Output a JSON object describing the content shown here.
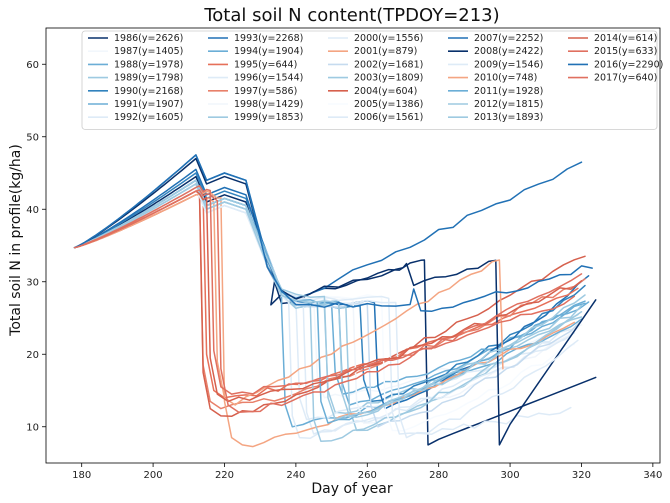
{
  "chart_data": {
    "type": "line",
    "title": "Total soil N content(TPDOY=213)",
    "xlabel": "Day of year",
    "ylabel": "Total soil N in profile(kg/ha)",
    "xlim": [
      170,
      342
    ],
    "ylim": [
      5,
      65
    ],
    "xticks": [
      180,
      200,
      220,
      240,
      260,
      280,
      300,
      320,
      340
    ],
    "yticks": [
      10,
      20,
      30,
      40,
      50,
      60
    ],
    "grid": false,
    "legend_position": "top-center",
    "legend_columns": 5,
    "series": [
      {
        "name": "1986(y=2626)",
        "color": "#08306b",
        "drop_day": 233,
        "peak": 44.5,
        "low": 27.0,
        "end_day": 324,
        "end_value": 16.8,
        "late_drop": 276,
        "late_low": 7.5
      },
      {
        "name": "1987(y=1405)",
        "color": "#f2f7fc",
        "drop_day": 245,
        "peak": 43.0,
        "low": 14.0,
        "end_day": 320,
        "end_value": 24.0
      },
      {
        "name": "1988(y=1978)",
        "color": "#6baed6",
        "drop_day": 252,
        "peak": 44.0,
        "low": 13.0,
        "end_day": 322,
        "end_value": 28.0
      },
      {
        "name": "1989(y=1798)",
        "color": "#9ecae1",
        "drop_day": 248,
        "peak": 43.5,
        "low": 12.0,
        "end_day": 322,
        "end_value": 26.0
      },
      {
        "name": "1990(y=2168)",
        "color": "#3182bd",
        "drop_day": 258,
        "peak": 45.0,
        "low": 13.5,
        "end_day": 323,
        "end_value": 30.0
      },
      {
        "name": "1991(y=1907)",
        "color": "#6baed6",
        "drop_day": 250,
        "peak": 44.0,
        "low": 14.5,
        "end_day": 322,
        "end_value": 27.0
      },
      {
        "name": "1992(y=1605)",
        "color": "#deebf7",
        "drop_day": 242,
        "peak": 43.0,
        "low": 9.0,
        "end_day": 318,
        "end_value": 24.0
      },
      {
        "name": "1993(y=2268)",
        "color": "#2171b5",
        "drop_day": 262,
        "peak": 45.5,
        "low": 12.5,
        "end_day": 323,
        "end_value": 31.0
      },
      {
        "name": "1994(y=1904)",
        "color": "#6baed6",
        "drop_day": 236,
        "peak": 44.0,
        "low": 10.0,
        "end_day": 322,
        "end_value": 25.0
      },
      {
        "name": "1995(y=644)",
        "color": "#e6705a",
        "drop_day": 215,
        "peak": 43.0,
        "low": 14.0,
        "end_day": 320,
        "end_value": 29.0
      },
      {
        "name": "1996(y=1544)",
        "color": "#deebf7",
        "drop_day": 240,
        "peak": 43.5,
        "low": 11.0,
        "end_day": 318,
        "end_value": 23.0
      },
      {
        "name": "1997(y=586)",
        "color": "#e8806a",
        "drop_day": 214,
        "peak": 42.5,
        "low": 12.5,
        "end_day": 322,
        "end_value": 30.5
      },
      {
        "name": "1998(y=1429)",
        "color": "#f0f5fb",
        "drop_day": 256,
        "peak": 43.0,
        "low": 10.5,
        "end_day": 320,
        "end_value": 23.5
      },
      {
        "name": "1999(y=1853)",
        "color": "#9ecae1",
        "drop_day": 254,
        "peak": 43.5,
        "low": 9.5,
        "end_day": 322,
        "end_value": 26.5
      },
      {
        "name": "2000(y=1556)",
        "color": "#deebf7",
        "drop_day": 238,
        "peak": 43.0,
        "low": 8.5,
        "end_day": 318,
        "end_value": 22.5
      },
      {
        "name": "2001(y=879)",
        "color": "#f4a582",
        "drop_day": 220,
        "peak": 42.5,
        "low": 7.5,
        "end_day": 320,
        "end_value": 25.0
      },
      {
        "name": "2002(y=1681)",
        "color": "#c6dbef",
        "drop_day": 260,
        "peak": 43.5,
        "low": 10.0,
        "end_day": 320,
        "end_value": 24.5
      },
      {
        "name": "2003(y=1809)",
        "color": "#9ecae1",
        "drop_day": 244,
        "peak": 44.0,
        "low": 8.0,
        "end_day": 321,
        "end_value": 26.0
      },
      {
        "name": "2004(y=604)",
        "color": "#d6604d",
        "drop_day": 213,
        "peak": 42.0,
        "low": 11.5,
        "end_day": 323,
        "end_value": 34.5
      },
      {
        "name": "2005(y=1386)",
        "color": "#f7fbff",
        "drop_day": 264,
        "peak": 43.0,
        "low": 9.5,
        "end_day": 319,
        "end_value": 22.0
      },
      {
        "name": "2006(y=1561)",
        "color": "#deebf7",
        "drop_day": 266,
        "peak": 43.0,
        "low": 9.0,
        "end_day": 318,
        "end_value": 12.5
      },
      {
        "name": "2007(y=2252)",
        "color": "#2171b5",
        "drop_day": 296,
        "peak": 47.5,
        "low": 24.5,
        "end_day": 323,
        "end_value": 47.0,
        "rising": true
      },
      {
        "name": "2008(y=2422)",
        "color": "#08306b",
        "drop_day": 270,
        "peak": 47.0,
        "low": 29.5,
        "end_day": 324,
        "end_value": 27.5,
        "late_drop": 296,
        "late_low": 7.5
      },
      {
        "name": "2009(y=1546)",
        "color": "#deebf7",
        "drop_day": 268,
        "peak": 43.0,
        "low": 8.5,
        "end_day": 320,
        "end_value": 22.0
      },
      {
        "name": "2010(y=748)",
        "color": "#f4a582",
        "drop_day": 218,
        "peak": 42.0,
        "low": 13.0,
        "end_day": 297,
        "end_value": 33.0,
        "late_drop": 297,
        "late_low": 18.0
      },
      {
        "name": "2011(y=1928)",
        "color": "#6baed6",
        "drop_day": 246,
        "peak": 44.0,
        "low": 10.5,
        "end_day": 322,
        "end_value": 27.5
      },
      {
        "name": "2012(y=1815)",
        "color": "#9ecae1",
        "drop_day": 248,
        "peak": 44.0,
        "low": 11.0,
        "end_day": 322,
        "end_value": 27.0
      },
      {
        "name": "2013(y=1893)",
        "color": "#9ecae1",
        "drop_day": 252,
        "peak": 43.5,
        "low": 11.5,
        "end_day": 322,
        "end_value": 28.5
      },
      {
        "name": "2014(y=614)",
        "color": "#d6604d",
        "drop_day": 216,
        "peak": 42.5,
        "low": 13.5,
        "end_day": 320,
        "end_value": 30.0
      },
      {
        "name": "2015(y=633)",
        "color": "#e07060",
        "drop_day": 217,
        "peak": 43.0,
        "low": 14.5,
        "end_day": 320,
        "end_value": 28.0
      },
      {
        "name": "2016(y=2290)",
        "color": "#2171b5",
        "drop_day": 272,
        "peak": 47.5,
        "low": 26.0,
        "end_day": 324,
        "end_value": 32.5
      },
      {
        "name": "2017(y=640)",
        "color": "#e07060",
        "drop_day": 219,
        "peak": 42.5,
        "low": 12.0,
        "end_day": 320,
        "end_value": 31.0
      }
    ]
  }
}
